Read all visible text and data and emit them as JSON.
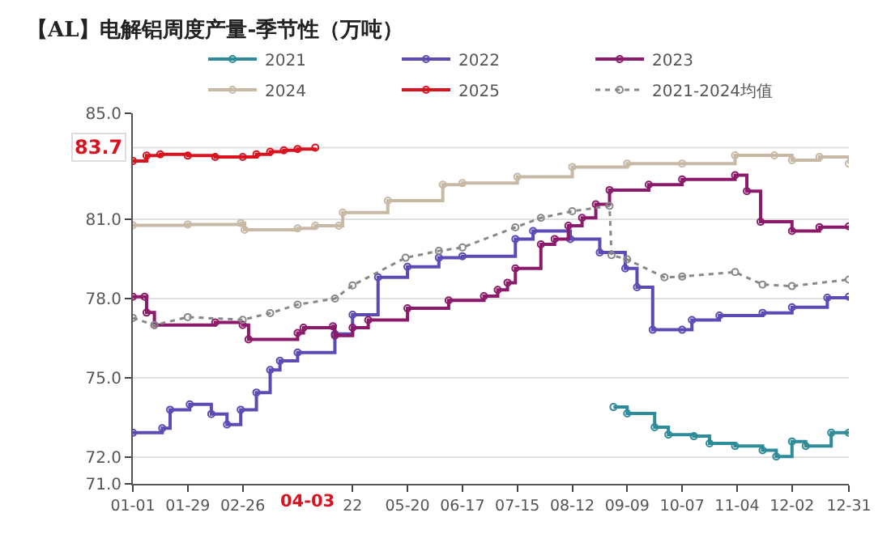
{
  "chart_data": {
    "type": "step",
    "title": "【AL】电解铝周度产量-季节性（万吨）",
    "legend": "top",
    "grid": "y",
    "marker": "circle",
    "xlim": [
      "--01-01",
      "--12-31"
    ],
    "xticks": [
      {
        "value": "--01-01",
        "label": "01-01"
      },
      {
        "value": "--01-29",
        "label": "01-29"
      },
      {
        "value": "--02-26",
        "label": "02-26"
      },
      {
        "value": "--04-22",
        "label": "22"
      },
      {
        "value": "--05-20",
        "label": "05-20"
      },
      {
        "value": "--06-17",
        "label": "06-17"
      },
      {
        "value": "--07-15",
        "label": "07-15"
      },
      {
        "value": "--08-12",
        "label": "08-12"
      },
      {
        "value": "--09-09",
        "label": "09-09"
      },
      {
        "value": "--10-07",
        "label": "10-07"
      },
      {
        "value": "--11-04",
        "label": "11-04"
      },
      {
        "value": "--12-02",
        "label": "12-02"
      },
      {
        "value": "--12-31",
        "label": "12-31"
      }
    ],
    "ylim": [
      71,
      85
    ],
    "yticks": [
      {
        "value": 71,
        "label": "71.0"
      },
      {
        "value": 72,
        "label": "72.0"
      },
      {
        "value": 75,
        "label": "75.0"
      },
      {
        "value": 78,
        "label": "78.0"
      },
      {
        "value": 81,
        "label": "81.0"
      },
      {
        "value": 85,
        "label": "85.0"
      }
    ],
    "ref_lines": [
      {
        "axis": "y",
        "value": 83.7,
        "label": "83.7",
        "line_style": "solid"
      }
    ],
    "annotations": [
      "04-03"
    ],
    "series": [
      {
        "name": "2021",
        "color": "#2e8b99",
        "x": [
          "--09-02",
          "--09-09",
          "--09-23",
          "--09-30",
          "--10-13",
          "--10-21",
          "--11-03",
          "--11-17",
          "--11-24",
          "--12-02",
          "--12-09",
          "--12-22",
          "--12-31"
        ],
        "values": [
          73.9,
          73.66,
          73.14,
          72.86,
          72.8,
          72.53,
          72.43,
          72.27,
          72.03,
          72.6,
          72.43,
          72.93,
          72.93
        ]
      },
      {
        "name": "2022",
        "color": "#5b4bb5",
        "x": [
          "--01-01",
          "--01-16",
          "--01-20",
          "--01-30",
          "--02-10",
          "--02-18",
          "--02-25",
          "--03-04",
          "--03-11",
          "--03-16",
          "--03-25",
          "--04-13",
          "--04-22",
          "--05-05",
          "--05-20",
          "--06-05",
          "--06-17",
          "--07-14",
          "--07-23",
          "--08-11",
          "--08-26",
          "--09-08",
          "--09-14",
          "--09-22",
          "--10-07",
          "--10-12",
          "--10-26",
          "--11-17",
          "--12-02",
          "--12-20",
          "--12-31"
        ],
        "values": [
          72.93,
          73.1,
          73.8,
          74.0,
          73.64,
          73.24,
          73.8,
          74.45,
          75.3,
          75.65,
          75.96,
          76.66,
          77.39,
          78.8,
          79.2,
          79.54,
          79.6,
          80.25,
          80.55,
          80.25,
          79.74,
          79.14,
          78.43,
          76.82,
          76.82,
          77.19,
          77.36,
          77.46,
          77.67,
          78.03,
          78.07
        ]
      },
      {
        "name": "2023",
        "color": "#8b1a6b",
        "x": [
          "--01-01",
          "--01-07",
          "--01-08",
          "--01-12",
          "--02-12",
          "--02-26",
          "--02-29",
          "--03-25",
          "--03-28",
          "--04-12",
          "--04-13",
          "--04-22",
          "--04-30",
          "--05-20",
          "--06-10",
          "--06-28",
          "--07-05",
          "--07-10",
          "--07-14",
          "--07-27",
          "--08-03",
          "--08-10",
          "--08-17",
          "--08-24",
          "--08-31",
          "--09-20",
          "--10-07",
          "--11-03",
          "--11-09",
          "--11-16",
          "--12-02",
          "--12-16",
          "--12-31"
        ],
        "values": [
          78.07,
          78.07,
          77.47,
          77.0,
          77.1,
          77.0,
          76.46,
          76.7,
          76.9,
          76.95,
          76.6,
          76.9,
          77.19,
          77.63,
          77.93,
          78.09,
          78.33,
          78.6,
          79.14,
          80.05,
          80.25,
          80.75,
          81.05,
          81.56,
          82.1,
          82.3,
          82.5,
          82.66,
          82.06,
          80.9,
          80.55,
          80.7,
          80.73
        ]
      },
      {
        "name": "2024",
        "color": "#c8b9a6",
        "x": [
          "--01-01",
          "--01-29",
          "--02-25",
          "--02-27",
          "--03-25",
          "--04-03",
          "--04-15",
          "--04-17",
          "--05-10",
          "--06-07",
          "--06-17",
          "--07-15",
          "--08-12",
          "--09-09",
          "--10-07",
          "--11-03",
          "--11-23",
          "--12-02",
          "--12-16",
          "--12-31"
        ],
        "values": [
          80.77,
          80.8,
          80.85,
          80.6,
          80.65,
          80.75,
          80.75,
          81.25,
          81.7,
          82.3,
          82.36,
          82.6,
          82.97,
          83.1,
          83.1,
          83.41,
          83.41,
          83.23,
          83.35,
          83.1
        ]
      },
      {
        "name": "2025",
        "color": "#d9121f",
        "x": [
          "--01-01",
          "--01-08",
          "--01-15",
          "--01-29",
          "--02-12",
          "--02-26",
          "--03-04",
          "--03-11",
          "--03-18",
          "--03-25",
          "--04-03"
        ],
        "values": [
          83.2,
          83.4,
          83.45,
          83.4,
          83.35,
          83.35,
          83.45,
          83.55,
          83.6,
          83.65,
          83.7
        ]
      },
      {
        "name": "2021-2024均值",
        "color": "#888888",
        "type": "line",
        "line_style": "dotted",
        "x": [
          "--01-01",
          "--01-12",
          "--01-29",
          "--02-26",
          "--03-11",
          "--03-25",
          "--04-13",
          "--04-22",
          "--05-19",
          "--06-05",
          "--06-17",
          "--07-14",
          "--07-27",
          "--08-12",
          "--08-31",
          "--09-01",
          "--09-09",
          "--09-28",
          "--10-07",
          "--11-03",
          "--11-17",
          "--12-02",
          "--12-31"
        ],
        "values": [
          77.27,
          77.0,
          77.3,
          77.2,
          77.45,
          77.77,
          78.0,
          78.5,
          79.54,
          79.8,
          79.93,
          80.69,
          81.05,
          81.3,
          81.5,
          79.64,
          79.48,
          78.8,
          78.83,
          79.0,
          78.53,
          78.47,
          78.72
        ]
      }
    ]
  }
}
